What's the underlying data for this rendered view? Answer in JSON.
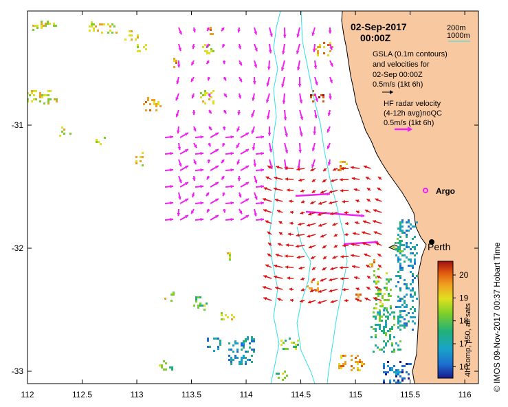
{
  "header": {
    "date": "02-Sep-2017",
    "time": "00:00Z"
  },
  "legend": {
    "depth_200": "200m",
    "depth_1000": "1000m",
    "gsla_line1": "GSLA (0.1m contours)",
    "gsla_line2": "and velocities for",
    "gsla_line3": "02-Sep 00:00Z",
    "gsla_scale": "0.5m/s (1kt 6h)",
    "hf_line1": "HF radar velocity",
    "hf_line2": "(4-12h avg)noQC",
    "hf_scale": "0.5m/s (1kt 6h)",
    "argo_label": "Argo",
    "city_label": "Perth"
  },
  "colorbar": {
    "label": "4h comp, p50, all sats",
    "ticks": [
      "16",
      "17",
      "18",
      "19",
      "20"
    ],
    "range": [
      15.5,
      20.6
    ],
    "colors": [
      "#1b1a8c",
      "#1c6fd0",
      "#1aa3c8",
      "#22b07a",
      "#7ccf2a",
      "#e0e020",
      "#f0a020",
      "#e05a10",
      "#a01010"
    ]
  },
  "axes": {
    "x_ticks": [
      "112",
      "112.5",
      "113",
      "113.5",
      "114",
      "114.5",
      "115",
      "115.5",
      "116"
    ],
    "y_ticks": [
      "-31",
      "-32",
      "-33"
    ]
  },
  "credit": "©  IMOS 09-Nov-2017 00:37 Hobart Time",
  "colors": {
    "land": "#f8c8a0",
    "gsla_vector": "#ee22ee",
    "hf_vector": "#dd1111",
    "isobath": "#30e0e8"
  }
}
